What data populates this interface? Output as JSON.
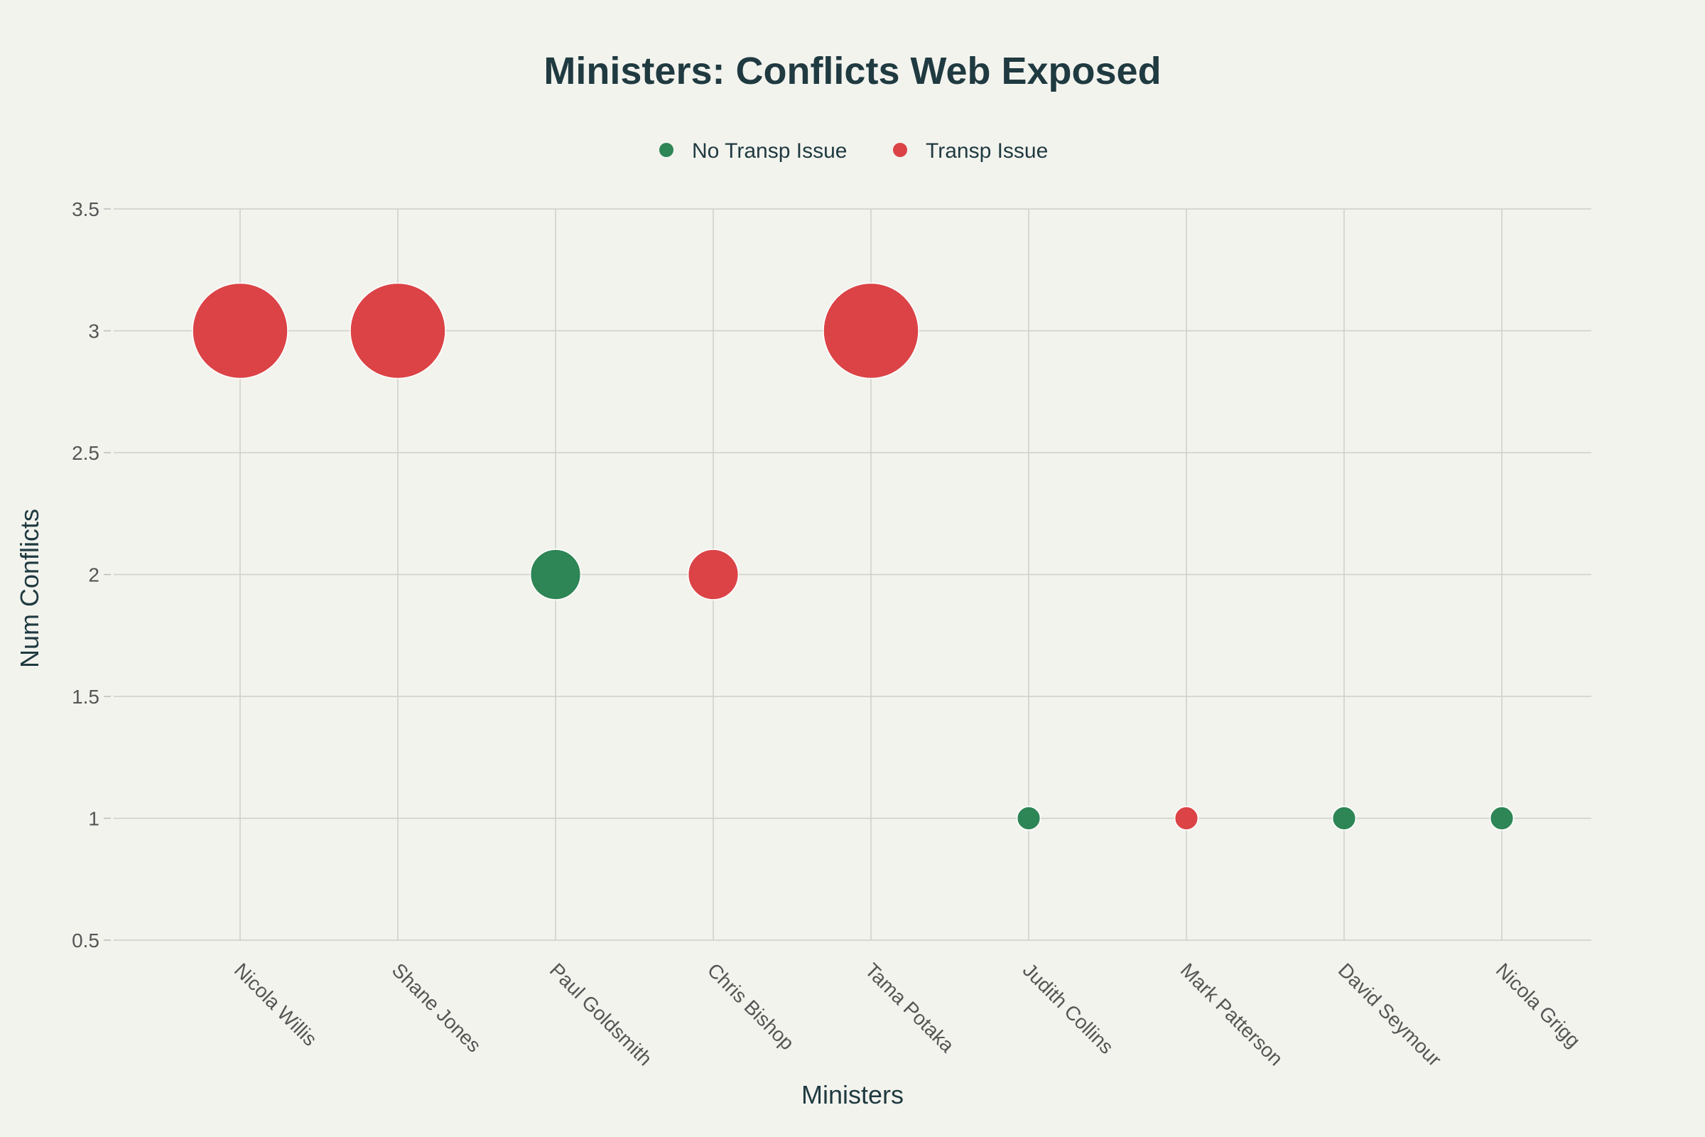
{
  "chart_data": {
    "type": "scatter",
    "title": "Ministers: Conflicts Web Exposed",
    "xlabel": "Ministers",
    "ylabel": "Num Conflicts",
    "ylim": [
      0.5,
      3.5
    ],
    "yticks": [
      "0.5",
      "1",
      "1.5",
      "2",
      "2.5",
      "3",
      "3.5"
    ],
    "categories": [
      "Nicola Willis",
      "Shane Jones",
      "Paul Goldsmith",
      "Chris Bishop",
      "Tama Potaka",
      "Judith Collins",
      "Mark Patterson",
      "David Seymour",
      "Nicola Grigg"
    ],
    "legend": [
      {
        "name": "No Transp Issue",
        "color": "#2e8555"
      },
      {
        "name": "Transp Issue",
        "color": "#db4346"
      }
    ],
    "points": [
      {
        "minister": "Nicola Willis",
        "conflicts": 3,
        "series": "Transp Issue"
      },
      {
        "minister": "Shane Jones",
        "conflicts": 3,
        "series": "Transp Issue"
      },
      {
        "minister": "Paul Goldsmith",
        "conflicts": 2,
        "series": "No Transp Issue"
      },
      {
        "minister": "Chris Bishop",
        "conflicts": 2,
        "series": "Transp Issue"
      },
      {
        "minister": "Tama Potaka",
        "conflicts": 3,
        "series": "Transp Issue"
      },
      {
        "minister": "Judith Collins",
        "conflicts": 1,
        "series": "No Transp Issue"
      },
      {
        "minister": "Mark Patterson",
        "conflicts": 1,
        "series": "Transp Issue"
      },
      {
        "minister": "David Seymour",
        "conflicts": 1,
        "series": "No Transp Issue"
      },
      {
        "minister": "Nicola Grigg",
        "conflicts": 1,
        "series": "No Transp Issue"
      }
    ]
  }
}
